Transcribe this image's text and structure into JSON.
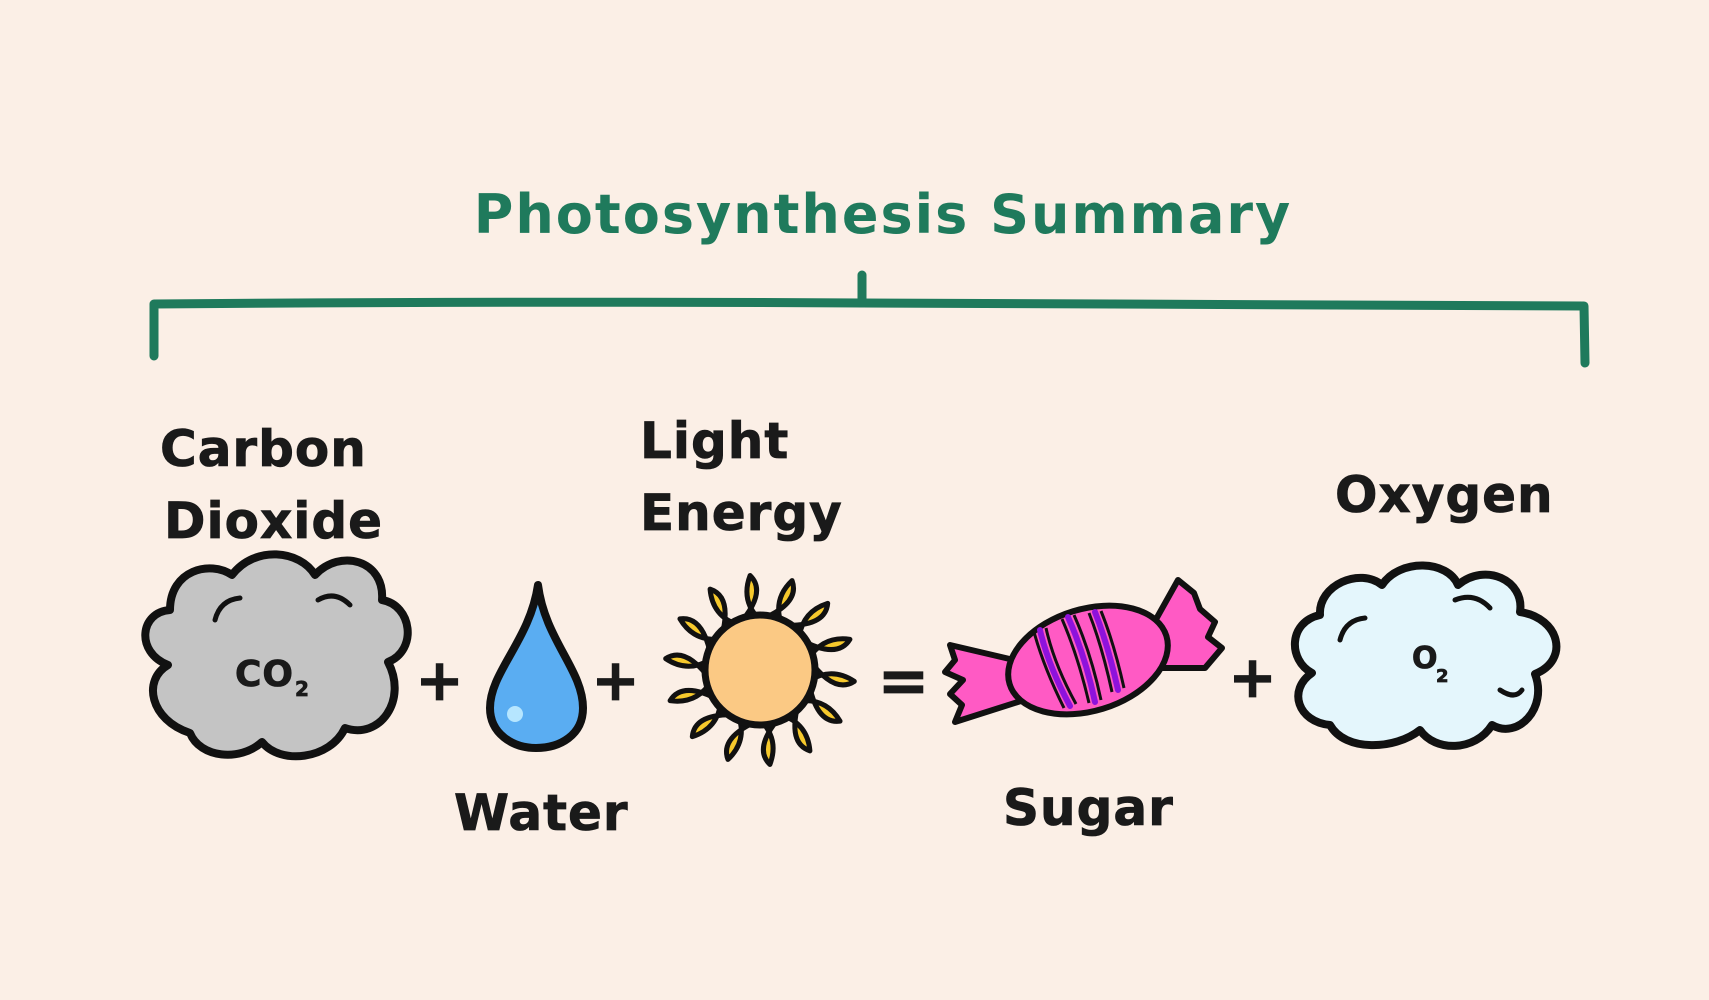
{
  "title": "Photosynthesis Summary",
  "colors": {
    "background": "#fbefe6",
    "title": "#1f7a5c",
    "bracket": "#1f7a5c",
    "outline": "#111111",
    "co2_cloud": "#c4c4c4",
    "water_drop": "#5aadf2",
    "sun_core": "#fbc984",
    "sun_rays": "#f6c92c",
    "candy": "#ff5ac4",
    "candy_stripes": "#8e12dc",
    "o2_cloud": "#e4f6fc"
  },
  "equation": {
    "inputs": [
      {
        "label_line1": "Carbon",
        "label_line2": "Dioxide",
        "formula_main": "CO",
        "formula_sub": "2",
        "icon": "gray-cloud-icon"
      },
      {
        "label": "Water",
        "icon": "water-drop-icon"
      },
      {
        "label_line1": "Light",
        "label_line2": "Energy",
        "icon": "sun-icon"
      }
    ],
    "outputs": [
      {
        "label": "Sugar",
        "icon": "candy-icon"
      },
      {
        "label": "Oxygen",
        "formula_main": "O",
        "formula_sub": "2",
        "icon": "blue-cloud-icon"
      }
    ],
    "plus_symbol": "+",
    "equals_symbol": "="
  }
}
